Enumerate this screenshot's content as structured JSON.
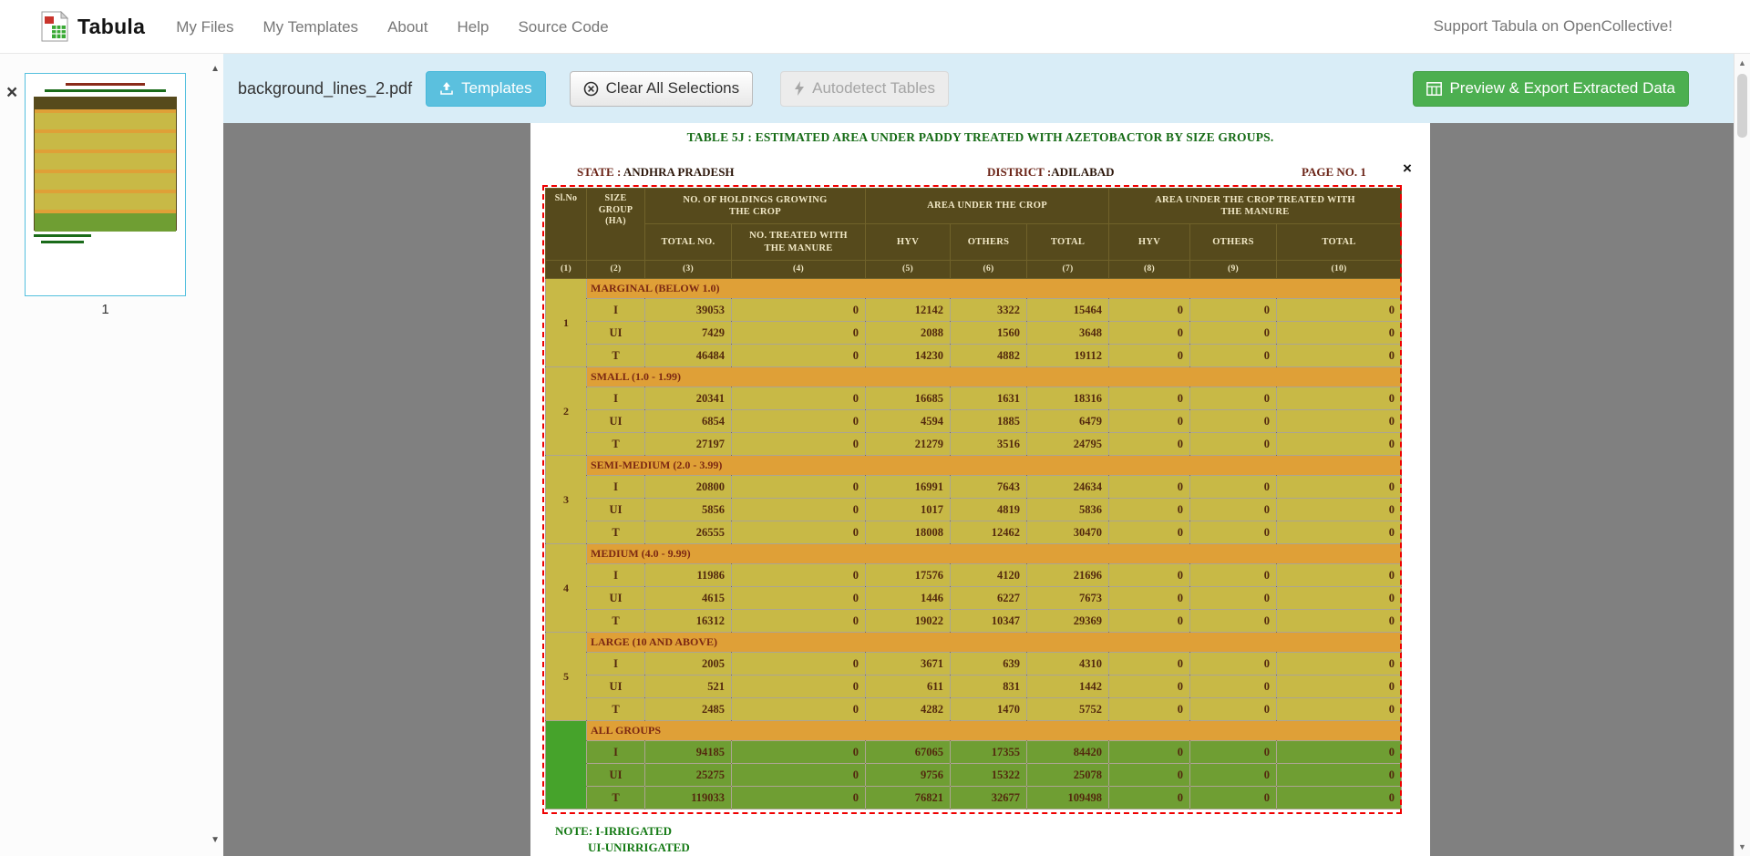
{
  "navbar": {
    "brand": "Tabula",
    "links": [
      "My Files",
      "My Templates",
      "About",
      "Help",
      "Source Code"
    ],
    "support_text": "Support Tabula on OpenCollective!"
  },
  "toolbar": {
    "filename": "background_lines_2.pdf",
    "templates_label": "Templates",
    "clear_label": "Clear All Selections",
    "autodetect_label": "Autodetect Tables",
    "export_label": "Preview & Export Extracted Data"
  },
  "sidebar": {
    "page_number": "1"
  },
  "ui": {
    "close_glyph": "×",
    "up_arrow": "▲",
    "down_arrow": "▼"
  },
  "colors": {
    "accent_blue": "#5bc0de",
    "export_green": "#4caf50",
    "toolbar_bg": "#d9edf7",
    "selection_red": "#ef0000",
    "table_header_olive": "#564a1c",
    "table_body_khaki": "#c8b946",
    "group_row_orange": "#dfa037",
    "all_groups_green": "#6f9e33"
  },
  "document": {
    "title": "TABLE 5J : ESTIMATED AREA UNDER PADDY TREATED WITH AZETOBACTOR BY SIZE GROUPS.",
    "state_label": "STATE :",
    "state_value": "ANDHRA PRADESH",
    "district_label": "DISTRICT :",
    "district_value": "ADILABAD",
    "page_label": "PAGE NO. 1",
    "notes": [
      "NOTE: I-IRRIGATED",
      "UI-UNIRRIGATED"
    ]
  },
  "table": {
    "header": {
      "sl_no": "Sl.No",
      "size_group_l1": "SIZE GROUP",
      "size_group_l2": "(HA)",
      "holdings_l1": "NO. OF HOLDINGS GROWING",
      "holdings_l2": "THE CROP",
      "area": "AREA UNDER THE CROP",
      "treated_l1": "AREA UNDER THE CROP TREATED WITH",
      "treated_l2": "THE MANURE",
      "total_no": "TOTAL NO.",
      "no_treated_l1": "NO. TREATED WITH",
      "no_treated_l2": "THE MANURE",
      "hyv": "HYV",
      "others": "OTHERS",
      "total": "TOTAL",
      "col_numbers": [
        "(1)",
        "(2)",
        "(3)",
        "(4)",
        "(5)",
        "(6)",
        "(7)",
        "(8)",
        "(9)",
        "(10)"
      ]
    },
    "groups": [
      {
        "sl_no": "1",
        "title": "MARGINAL (BELOW 1.0)",
        "all_groups": false,
        "rows": [
          {
            "label": "I",
            "values": [
              39053,
              0,
              12142,
              3322,
              15464,
              0,
              0,
              0
            ]
          },
          {
            "label": "UI",
            "values": [
              7429,
              0,
              2088,
              1560,
              3648,
              0,
              0,
              0
            ]
          },
          {
            "label": "T",
            "values": [
              46484,
              0,
              14230,
              4882,
              19112,
              0,
              0,
              0
            ]
          }
        ]
      },
      {
        "sl_no": "2",
        "title": "SMALL (1.0 - 1.99)",
        "all_groups": false,
        "rows": [
          {
            "label": "I",
            "values": [
              20341,
              0,
              16685,
              1631,
              18316,
              0,
              0,
              0
            ]
          },
          {
            "label": "UI",
            "values": [
              6854,
              0,
              4594,
              1885,
              6479,
              0,
              0,
              0
            ]
          },
          {
            "label": "T",
            "values": [
              27197,
              0,
              21279,
              3516,
              24795,
              0,
              0,
              0
            ]
          }
        ]
      },
      {
        "sl_no": "3",
        "title": "SEMI-MEDIUM (2.0 - 3.99)",
        "all_groups": false,
        "rows": [
          {
            "label": "I",
            "values": [
              20800,
              0,
              16991,
              7643,
              24634,
              0,
              0,
              0
            ]
          },
          {
            "label": "UI",
            "values": [
              5856,
              0,
              1017,
              4819,
              5836,
              0,
              0,
              0
            ]
          },
          {
            "label": "T",
            "values": [
              26555,
              0,
              18008,
              12462,
              30470,
              0,
              0,
              0
            ]
          }
        ]
      },
      {
        "sl_no": "4",
        "title": "MEDIUM (4.0 - 9.99)",
        "all_groups": false,
        "rows": [
          {
            "label": "I",
            "values": [
              11986,
              0,
              17576,
              4120,
              21696,
              0,
              0,
              0
            ]
          },
          {
            "label": "UI",
            "values": [
              4615,
              0,
              1446,
              6227,
              7673,
              0,
              0,
              0
            ]
          },
          {
            "label": "T",
            "values": [
              16312,
              0,
              19022,
              10347,
              29369,
              0,
              0,
              0
            ]
          }
        ]
      },
      {
        "sl_no": "5",
        "title": "LARGE (10 AND ABOVE)",
        "all_groups": false,
        "rows": [
          {
            "label": "I",
            "values": [
              2005,
              0,
              3671,
              639,
              4310,
              0,
              0,
              0
            ]
          },
          {
            "label": "UI",
            "values": [
              521,
              0,
              611,
              831,
              1442,
              0,
              0,
              0
            ]
          },
          {
            "label": "T",
            "values": [
              2485,
              0,
              4282,
              1470,
              5752,
              0,
              0,
              0
            ]
          }
        ]
      },
      {
        "sl_no": "",
        "title": "ALL GROUPS",
        "all_groups": true,
        "rows": [
          {
            "label": "I",
            "values": [
              94185,
              0,
              67065,
              17355,
              84420,
              0,
              0,
              0
            ]
          },
          {
            "label": "UI",
            "values": [
              25275,
              0,
              9756,
              15322,
              25078,
              0,
              0,
              0
            ]
          },
          {
            "label": "T",
            "values": [
              119033,
              0,
              76821,
              32677,
              109498,
              0,
              0,
              0
            ]
          }
        ]
      }
    ]
  }
}
